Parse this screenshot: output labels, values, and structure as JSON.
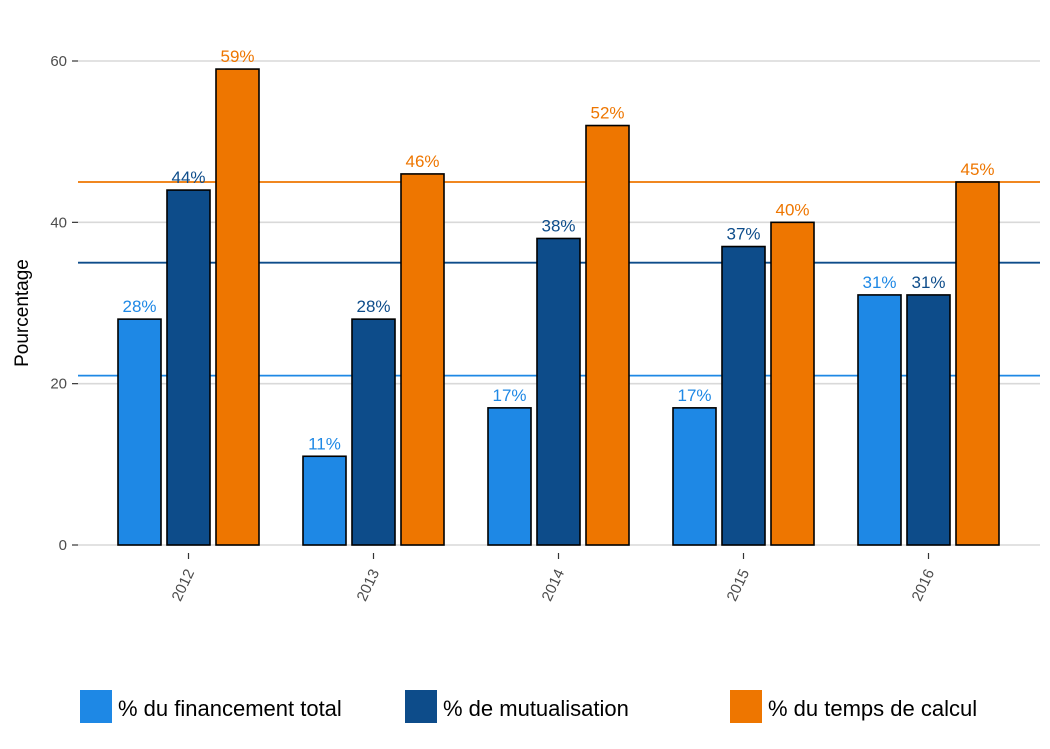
{
  "chart_data": {
    "type": "bar",
    "categories": [
      "2012",
      "2013",
      "2014",
      "2015",
      "2016"
    ],
    "series": [
      {
        "name": "% du financement total",
        "color": "#1e88e5",
        "values": [
          28,
          11,
          17,
          17,
          31
        ],
        "labels": [
          "28%",
          "11%",
          "17%",
          "17%",
          "31%"
        ]
      },
      {
        "name": "% de mutualisation",
        "color": "#0d4c8a",
        "values": [
          44,
          28,
          38,
          37,
          31
        ],
        "labels": [
          "44%",
          "28%",
          "38%",
          "37%",
          "31%"
        ]
      },
      {
        "name": "% du temps de calcul",
        "color": "#ee7600",
        "values": [
          59,
          46,
          52,
          40,
          45
        ],
        "labels": [
          "59%",
          "46%",
          "52%",
          "40%",
          "45%"
        ]
      }
    ],
    "reference_lines": [
      {
        "value": 21,
        "color": "#1e88e5"
      },
      {
        "value": 35,
        "color": "#0d4c8a"
      },
      {
        "value": 45,
        "color": "#ee7600"
      }
    ],
    "ylabel": "Pourcentage",
    "xlabel": "",
    "ylim": [
      -2,
      63
    ],
    "yticks": [
      "0",
      "20",
      "40",
      "60"
    ],
    "grid": true,
    "legend_position": "bottom"
  }
}
